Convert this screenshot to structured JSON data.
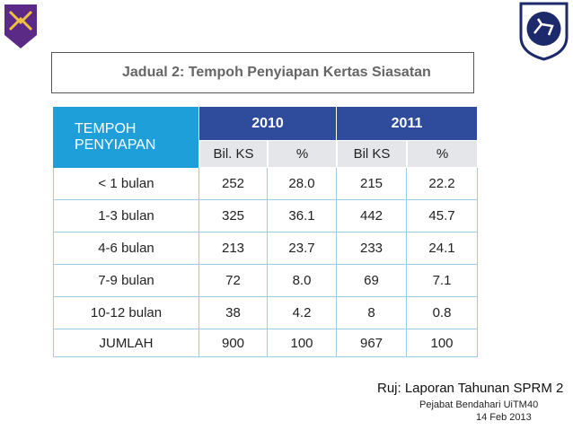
{
  "title": "Jadual 2: Tempoh Penyiapan Kertas Siasatan",
  "table": {
    "header": {
      "first": "TEMPOH\nPENYIAPAN",
      "years": [
        "2010",
        "2011"
      ],
      "sub": [
        "Bil. KS",
        "%",
        "Bil KS",
        "%"
      ]
    },
    "rows": [
      [
        "< 1 bulan",
        "252",
        "28.0",
        "215",
        "22.2"
      ],
      [
        "1-3 bulan",
        "325",
        "36.1",
        "442",
        "45.7"
      ],
      [
        "4-6 bulan",
        "213",
        "23.7",
        "233",
        "24.1"
      ],
      [
        "7-9 bulan",
        "72",
        "8.0",
        "69",
        "7.1"
      ],
      [
        "10-12 bulan",
        "38",
        "4.2",
        "8",
        "0.8"
      ],
      [
        "JUMLAH",
        "900",
        "100",
        "967",
        "100"
      ]
    ]
  },
  "footer": {
    "reference": "Ruj: Laporan Tahunan SPRM 2",
    "office": "Pejabat Bendahari UiTM",
    "page": "40",
    "date": "14 Feb 2013"
  }
}
